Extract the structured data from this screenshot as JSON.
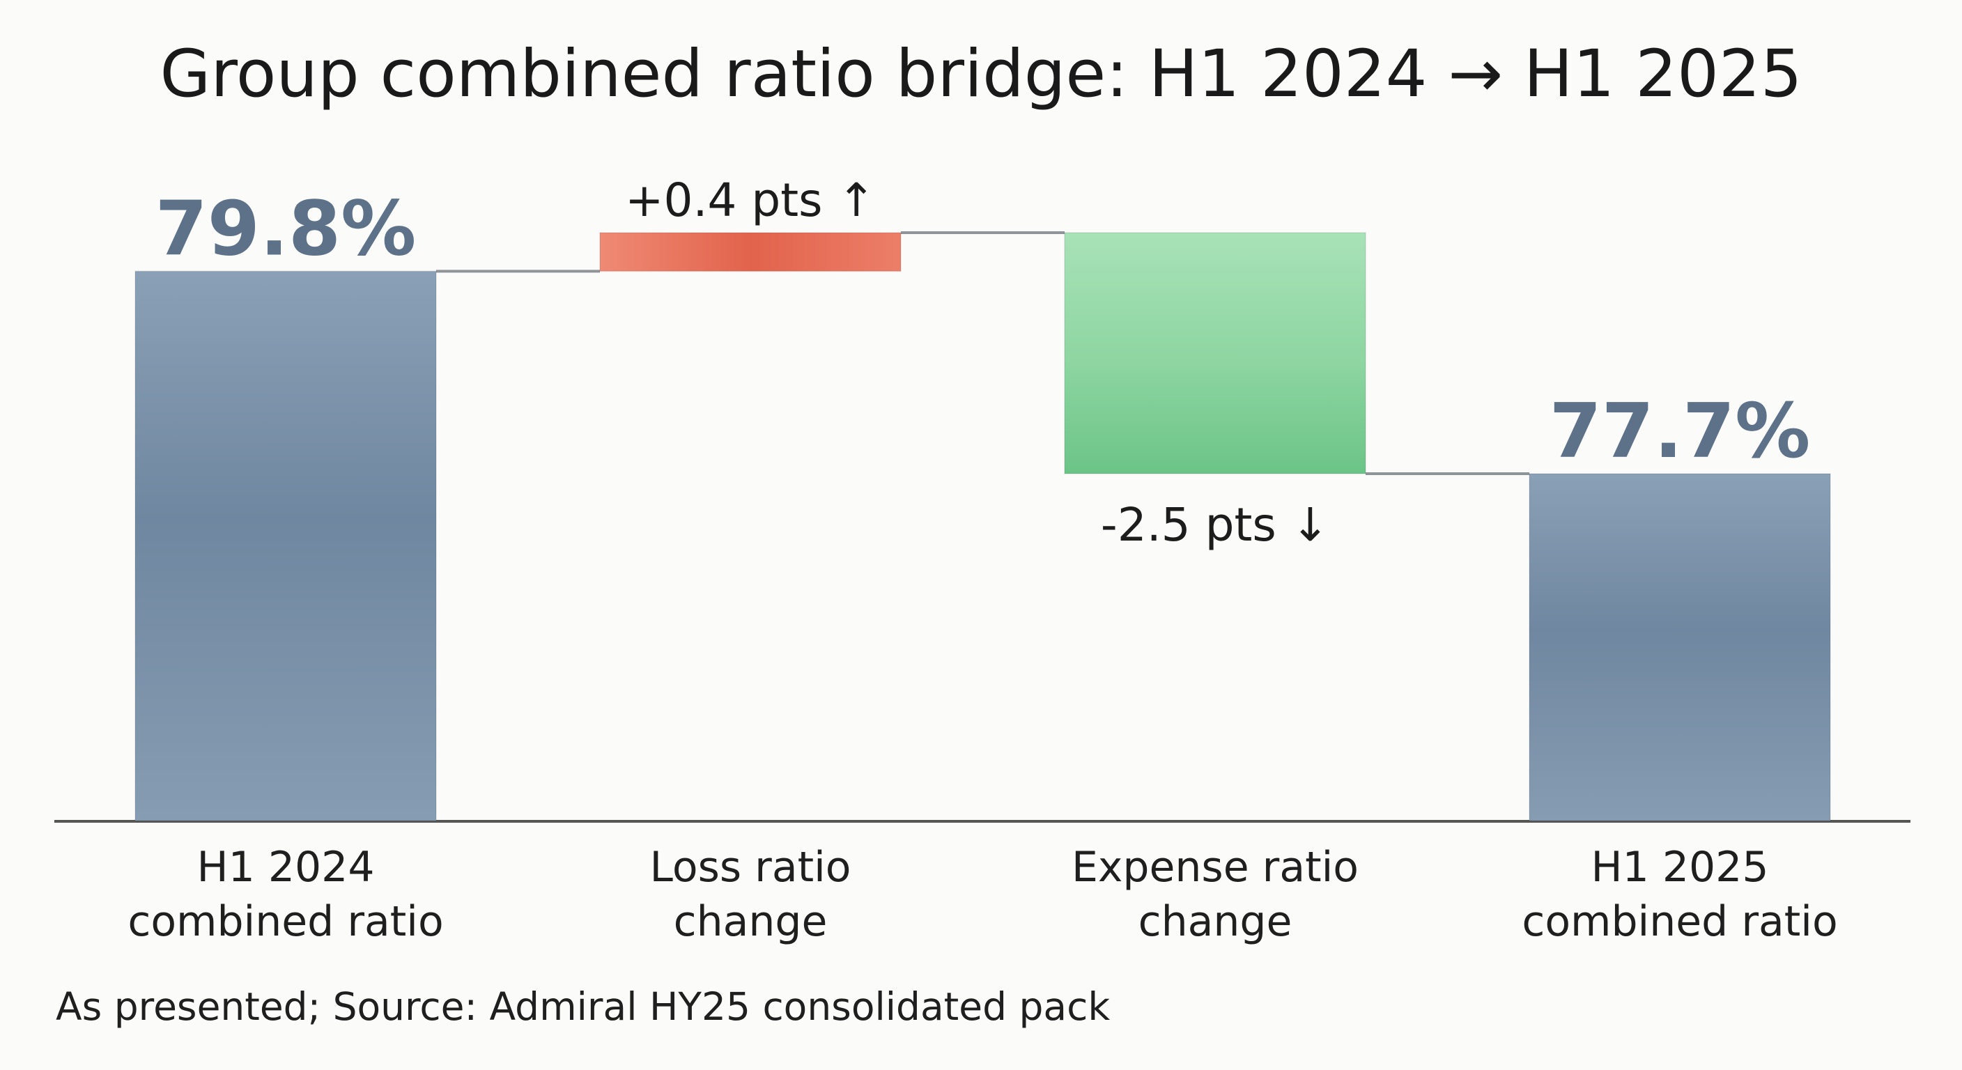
{
  "title": "Group combined ratio bridge: H1 2024 → H1 2025",
  "footer": "As presented; Source: Admiral HY25 consolidated pack",
  "chart_data": {
    "type": "bar",
    "subtype": "waterfall",
    "unit": "%",
    "categories": [
      "H1 2024 combined ratio",
      "Loss ratio change",
      "Expense ratio change",
      "H1 2025 combined ratio"
    ],
    "category_lines": [
      [
        "H1 2024",
        "combined ratio"
      ],
      [
        "Loss ratio",
        "change"
      ],
      [
        "Expense ratio",
        "change"
      ],
      [
        "H1 2025",
        "combined ratio"
      ]
    ],
    "bars": [
      {
        "kind": "total",
        "start": 0,
        "end": 79.8,
        "label": "79.8%",
        "color": "#7d93ab"
      },
      {
        "kind": "delta",
        "start": 79.8,
        "end": 80.2,
        "value": 0.4,
        "label": "+0.4 pts ↑",
        "color": "#e8735e"
      },
      {
        "kind": "delta",
        "start": 80.2,
        "end": 77.7,
        "value": -2.5,
        "label": "-2.5 pts ↓",
        "color": "#8fd6a3"
      },
      {
        "kind": "total",
        "start": 0,
        "end": 77.7,
        "label": "77.7%",
        "color": "#7d93ab"
      }
    ],
    "total_label_color": "#5d7289",
    "axis_color": "#555555",
    "connector_color": "#8f9499",
    "visible_range": [
      0,
      80.2
    ],
    "grid": false,
    "legend": "none"
  }
}
